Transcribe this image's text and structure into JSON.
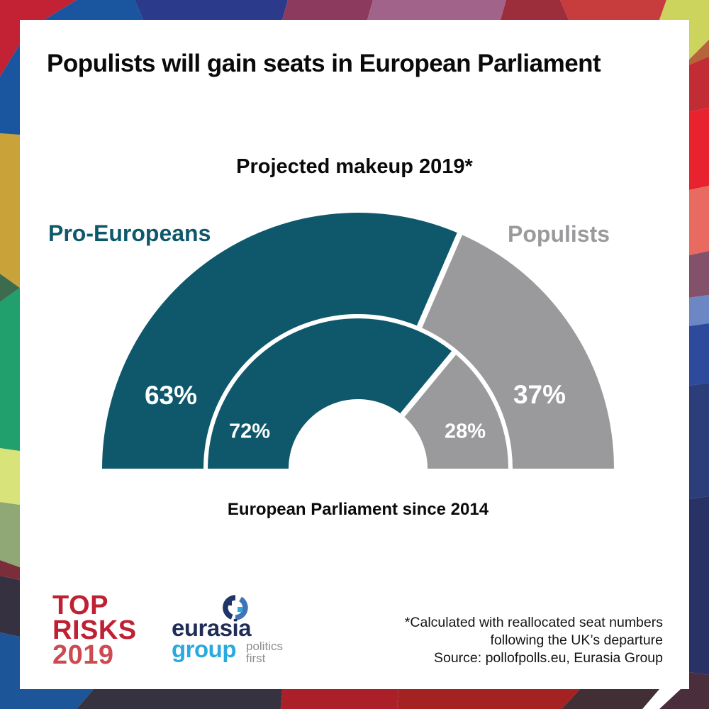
{
  "colors": {
    "pro_europeans": "#0f586c",
    "populists": "#9a9a9c",
    "top_risks_red": "#bf2133",
    "top_risks_year_red": "#cd4a52",
    "eurasia_navy": "#1f2d58",
    "eurasia_blue": "#2aa9e0"
  },
  "title": "Populists will gain seats in European Parliament",
  "chart_data": {
    "type": "pie",
    "subtype": "nested-semicircle-donut",
    "title": "Projected makeup 2019*",
    "categories": [
      "Pro-Europeans",
      "Populists"
    ],
    "series": [
      {
        "name": "Projected makeup 2019*",
        "ring": "outer",
        "values": [
          63,
          37
        ],
        "labels": [
          "63%",
          "37%"
        ]
      },
      {
        "name": "European Parliament since 2014",
        "ring": "inner",
        "values": [
          72,
          28
        ],
        "labels": [
          "72%",
          "28%"
        ]
      }
    ],
    "colors": [
      "#0f586c",
      "#9a9a9c"
    ],
    "legend_position": "sides"
  },
  "footer": {
    "top_risks": {
      "line1": "TOP",
      "line2": "RISKS",
      "line3": "2019"
    },
    "eurasia": {
      "name_line1": "eurasia",
      "name_line2": "group",
      "tagline_line1": "politics",
      "tagline_line2": "first"
    },
    "source": {
      "line1": "*Calculated with reallocated seat numbers",
      "line2": "following the UK’s departure",
      "line3": "Source: pollofpolls.eu, Eurasia Group"
    }
  }
}
